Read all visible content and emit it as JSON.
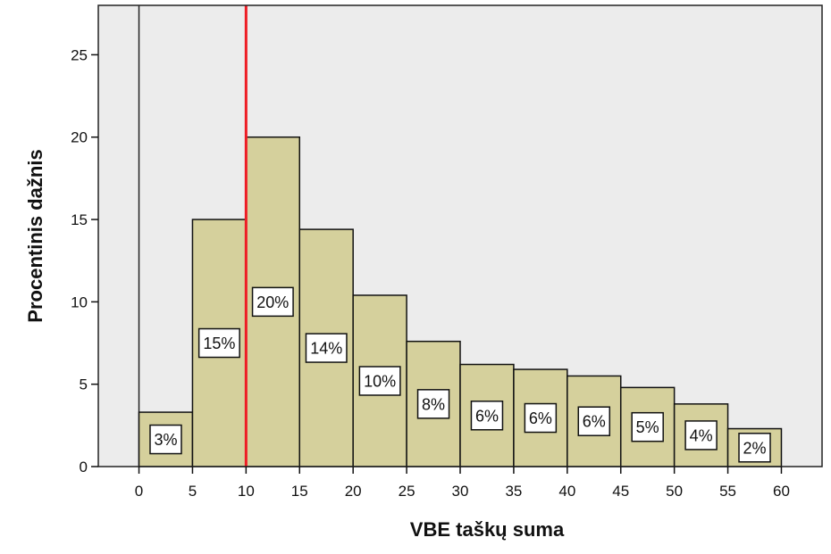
{
  "chart_data": {
    "type": "histogram",
    "title": "",
    "xlabel": "VBE taškų suma",
    "ylabel": "Procentinis dažnis",
    "bin_edges": [
      0,
      5,
      10,
      15,
      20,
      25,
      30,
      35,
      40,
      45,
      50,
      55,
      60
    ],
    "values": [
      3.3,
      15.0,
      20.0,
      14.4,
      10.4,
      7.6,
      6.2,
      5.9,
      5.5,
      4.8,
      3.8,
      2.3
    ],
    "data_labels": [
      "3%",
      "15%",
      "20%",
      "14%",
      "10%",
      "8%",
      "6%",
      "6%",
      "6%",
      "5%",
      "4%",
      "2%"
    ],
    "xlim": [
      -3.8,
      63.8
    ],
    "ylim": [
      0,
      28
    ],
    "x_ticks": [
      "0",
      "5",
      "10",
      "15",
      "20",
      "25",
      "30",
      "35",
      "40",
      "45",
      "50",
      "55",
      "60"
    ],
    "y_ticks": [
      "0",
      "5",
      "10",
      "15",
      "20",
      "25"
    ],
    "reference_line": {
      "x": 10,
      "color": "#ee1c25"
    },
    "bar_fill": "#d5d09c",
    "plot_background": "#ececec",
    "grid": false
  }
}
